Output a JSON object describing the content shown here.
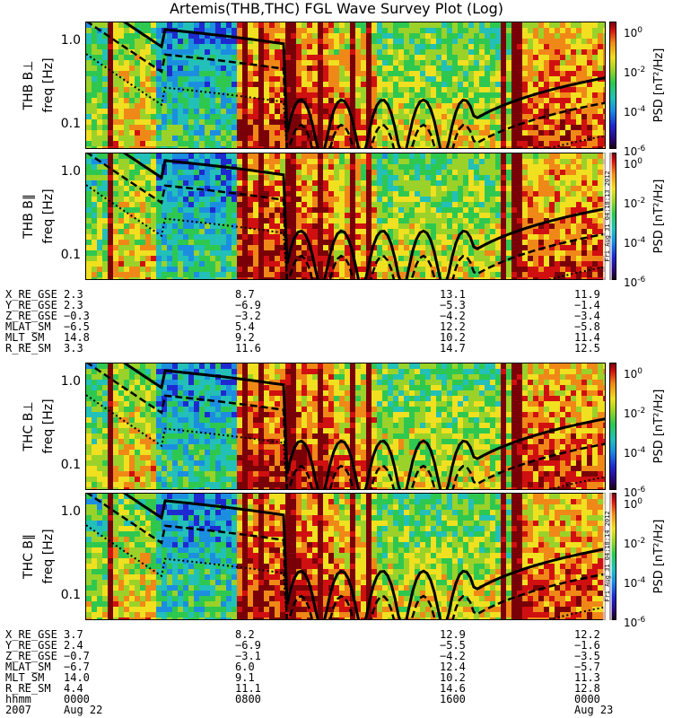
{
  "title": "Artemis(THB,THC) FGL Wave Survey Plot (Log)",
  "colorbar": {
    "unit_label": "PSD [nT²/Hz]",
    "ticks": [
      {
        "base": "10",
        "exp": "0",
        "value": 1
      },
      {
        "base": "10",
        "exp": "-2",
        "value": 0.01
      },
      {
        "base": "10",
        "exp": "-4",
        "value": 0.0001
      },
      {
        "base": "10",
        "exp": "-6",
        "value": 1e-06
      }
    ],
    "colors": [
      "#1a0010",
      "#2b0070",
      "#1e2ad0",
      "#1c8ee0",
      "#22c0b8",
      "#2ec850",
      "#9ad22a",
      "#f0e020",
      "#f08818",
      "#d01010",
      "#7a0008"
    ]
  },
  "panels": [
    {
      "id": "thb-bperp",
      "name": "THB B⊥",
      "stamp": ""
    },
    {
      "id": "thb-bpar",
      "name": "THB B∥",
      "stamp": "Fri Aug 31 04:18:13 2012"
    },
    {
      "id": "thc-bperp",
      "name": "THC B⊥",
      "stamp": ""
    },
    {
      "id": "thc-bpar",
      "name": "THC B∥",
      "stamp": "Fri Aug 31 04:18:14 2012"
    }
  ],
  "freq_axis": {
    "label": "freq [Hz]",
    "ticks": [
      "1.0",
      "0.1"
    ]
  },
  "ephemeris_thb": {
    "rows": [
      {
        "name": "X_RE_GSE",
        "values": [
          "2.3",
          "8.7",
          "13.1",
          "11.9"
        ]
      },
      {
        "name": "Y_RE_GSE",
        "values": [
          "2.3",
          "−6.9",
          "−5.3",
          "−1.4"
        ]
      },
      {
        "name": "Z_RE_GSE",
        "values": [
          "−0.3",
          "−3.2",
          "−4.2",
          "−3.4"
        ]
      },
      {
        "name": "MLAT_SM",
        "values": [
          "−6.5",
          "5.4",
          "12.2",
          "−5.8"
        ]
      },
      {
        "name": "MLT_SM",
        "values": [
          "14.8",
          "9.2",
          "10.2",
          "11.4"
        ]
      },
      {
        "name": "R_RE_SM",
        "values": [
          "3.3",
          "11.6",
          "14.7",
          "12.5"
        ]
      }
    ]
  },
  "ephemeris_thc": {
    "rows": [
      {
        "name": "X_RE_GSE",
        "values": [
          "3.7",
          "8.2",
          "12.9",
          "12.2"
        ]
      },
      {
        "name": "Y_RE_GSE",
        "values": [
          "2.4",
          "−6.9",
          "−5.5",
          "−1.6"
        ]
      },
      {
        "name": "Z_RE_GSE",
        "values": [
          "−0.7",
          "−3.1",
          "−4.2",
          "−3.5"
        ]
      },
      {
        "name": "MLAT_SM",
        "values": [
          "−6.7",
          "6.0",
          "12.4",
          "−5.7"
        ]
      },
      {
        "name": "MLT_SM",
        "values": [
          "14.0",
          "9.1",
          "10.2",
          "11.3"
        ]
      },
      {
        "name": "R_RE_SM",
        "values": [
          "4.4",
          "11.1",
          "14.6",
          "12.8"
        ]
      },
      {
        "name": "hhmm",
        "values": [
          "0000",
          "0800",
          "1600",
          "0000"
        ]
      }
    ],
    "year": "2007",
    "dates": [
      "Aug 22",
      "",
      "",
      "Aug 23"
    ]
  },
  "chart_data": {
    "type": "heatmap",
    "title": "Artemis(THB,THC) FGL Wave Survey Plot (Log)",
    "xlabel": "hhmm",
    "x_ticks": [
      "0000",
      "0800",
      "1600",
      "0000"
    ],
    "x_range_hours": [
      0,
      24
    ],
    "ylabel": "freq [Hz]",
    "y_scale": "log",
    "y_ticks": [
      1.0,
      0.1
    ],
    "y_range_hz": [
      0.05,
      1.7
    ],
    "colorbar_scale": "log",
    "colorbar_range": [
      1e-06,
      3
    ],
    "colorbar_ticks": [
      1,
      0.01,
      0.0001,
      1e-06
    ],
    "series": [
      "THB B⊥",
      "THB B∥",
      "THC B⊥",
      "THC B∥"
    ]
  }
}
